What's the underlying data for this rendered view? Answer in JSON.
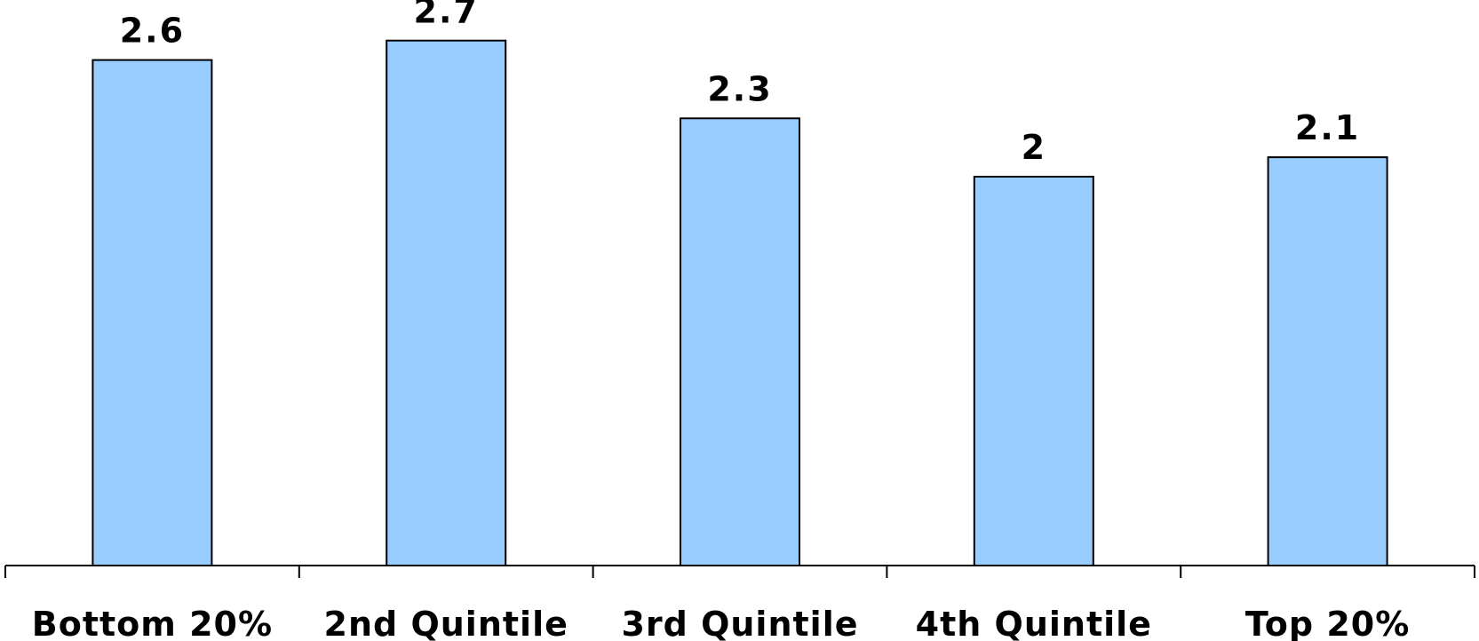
{
  "chart_data": {
    "type": "bar",
    "categories": [
      "Bottom 20%",
      "2nd Quintile",
      "3rd Quintile",
      "4th Quintile",
      "Top 20%"
    ],
    "values": [
      2.6,
      2.7,
      2.3,
      2,
      2.1
    ],
    "value_labels": [
      "2.6",
      "2.7",
      "2.3",
      "2",
      "2.1"
    ],
    "title": "",
    "xlabel": "",
    "ylabel": "",
    "ylim": [
      0,
      3
    ],
    "grid": false,
    "legend": "none",
    "bar_color": "#99ccff",
    "bar_outline": "#000000"
  }
}
